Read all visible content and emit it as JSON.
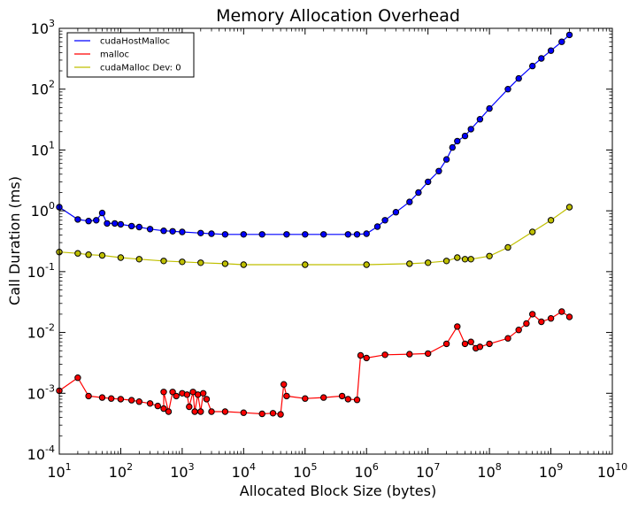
{
  "chart_data": {
    "type": "scatter",
    "title": "Memory Allocation Overhead",
    "xlabel": "Allocated Block Size (bytes)",
    "ylabel": "Call Duration (ms)",
    "xscale": "log",
    "yscale": "log",
    "xlim": [
      10,
      10000000000
    ],
    "ylim": [
      0.0001,
      1000
    ],
    "x_ticks": [
      {
        "base": "10",
        "exp": "1",
        "value": 10
      },
      {
        "base": "10",
        "exp": "2",
        "value": 100
      },
      {
        "base": "10",
        "exp": "3",
        "value": 1000
      },
      {
        "base": "10",
        "exp": "4",
        "value": 10000
      },
      {
        "base": "10",
        "exp": "5",
        "value": 100000
      },
      {
        "base": "10",
        "exp": "6",
        "value": 1000000
      },
      {
        "base": "10",
        "exp": "7",
        "value": 10000000
      },
      {
        "base": "10",
        "exp": "8",
        "value": 100000000
      },
      {
        "base": "10",
        "exp": "9",
        "value": 1000000000
      },
      {
        "base": "10",
        "exp": "10",
        "value": 10000000000
      }
    ],
    "y_ticks": [
      {
        "base": "10",
        "exp": "-4",
        "value": 0.0001
      },
      {
        "base": "10",
        "exp": "-3",
        "value": 0.001
      },
      {
        "base": "10",
        "exp": "-2",
        "value": 0.01
      },
      {
        "base": "10",
        "exp": "-1",
        "value": 0.1
      },
      {
        "base": "10",
        "exp": "0",
        "value": 1
      },
      {
        "base": "10",
        "exp": "1",
        "value": 10
      },
      {
        "base": "10",
        "exp": "2",
        "value": 100
      },
      {
        "base": "10",
        "exp": "3",
        "value": 1000
      }
    ],
    "grid": false,
    "legend_position": "top-left",
    "series": [
      {
        "name": "cudaHostMalloc",
        "color": "#0000ff",
        "marker_color": "#0000ff",
        "points": [
          [
            10,
            1.15
          ],
          [
            20,
            0.72
          ],
          [
            30,
            0.68
          ],
          [
            40,
            0.7
          ],
          [
            50,
            0.92
          ],
          [
            60,
            0.62
          ],
          [
            80,
            0.62
          ],
          [
            100,
            0.6
          ],
          [
            150,
            0.56
          ],
          [
            200,
            0.54
          ],
          [
            300,
            0.5
          ],
          [
            500,
            0.47
          ],
          [
            700,
            0.46
          ],
          [
            1000,
            0.45
          ],
          [
            2000,
            0.43
          ],
          [
            3000,
            0.42
          ],
          [
            5000,
            0.41
          ],
          [
            10000,
            0.41
          ],
          [
            20000,
            0.41
          ],
          [
            50000,
            0.41
          ],
          [
            100000,
            0.41
          ],
          [
            200000,
            0.41
          ],
          [
            500000,
            0.41
          ],
          [
            700000,
            0.41
          ],
          [
            1000000,
            0.42
          ],
          [
            1500000,
            0.55
          ],
          [
            2000000,
            0.7
          ],
          [
            3000000,
            0.95
          ],
          [
            5000000,
            1.4
          ],
          [
            7000000,
            2.0
          ],
          [
            10000000,
            3.0
          ],
          [
            15000000,
            4.5
          ],
          [
            20000000,
            7.0
          ],
          [
            25000000,
            11.0
          ],
          [
            30000000,
            14.0
          ],
          [
            40000000,
            17.0
          ],
          [
            50000000,
            22.0
          ],
          [
            70000000,
            32.0
          ],
          [
            100000000,
            48.0
          ],
          [
            200000000,
            100.0
          ],
          [
            300000000,
            150.0
          ],
          [
            500000000,
            240.0
          ],
          [
            700000000,
            320.0
          ],
          [
            1000000000,
            430.0
          ],
          [
            1500000000,
            600.0
          ],
          [
            2000000000,
            780.0
          ]
        ]
      },
      {
        "name": "malloc",
        "color": "#ff0000",
        "marker_color": "#ff0000",
        "points": [
          [
            10,
            0.0011
          ],
          [
            20,
            0.0018
          ],
          [
            30,
            0.0009
          ],
          [
            50,
            0.00085
          ],
          [
            70,
            0.00082
          ],
          [
            100,
            0.0008
          ],
          [
            150,
            0.00077
          ],
          [
            200,
            0.00073
          ],
          [
            300,
            0.00068
          ],
          [
            400,
            0.00062
          ],
          [
            500,
            0.00056
          ],
          [
            500,
            0.00105
          ],
          [
            600,
            0.0005
          ],
          [
            700,
            0.00105
          ],
          [
            800,
            0.0009
          ],
          [
            1000,
            0.001
          ],
          [
            1200,
            0.00095
          ],
          [
            1300,
            0.0006
          ],
          [
            1500,
            0.00105
          ],
          [
            1600,
            0.0005
          ],
          [
            1800,
            0.00095
          ],
          [
            2000,
            0.0005
          ],
          [
            2200,
            0.001
          ],
          [
            2500,
            0.0008
          ],
          [
            3000,
            0.0005
          ],
          [
            5000,
            0.0005
          ],
          [
            10000,
            0.00048
          ],
          [
            20000,
            0.00046
          ],
          [
            30000,
            0.00047
          ],
          [
            40000,
            0.00045
          ],
          [
            45000,
            0.0014
          ],
          [
            50000,
            0.0009
          ],
          [
            100000,
            0.00082
          ],
          [
            200000,
            0.00085
          ],
          [
            400000,
            0.0009
          ],
          [
            500000,
            0.0008
          ],
          [
            700000,
            0.00078
          ],
          [
            800000,
            0.0042
          ],
          [
            1000000,
            0.0038
          ],
          [
            2000000,
            0.0043
          ],
          [
            5000000,
            0.0044
          ],
          [
            10000000,
            0.0045
          ],
          [
            20000000,
            0.0065
          ],
          [
            30000000,
            0.0125
          ],
          [
            40000000,
            0.0065
          ],
          [
            50000000,
            0.007
          ],
          [
            60000000,
            0.0055
          ],
          [
            70000000,
            0.0058
          ],
          [
            100000000,
            0.0065
          ],
          [
            200000000,
            0.008
          ],
          [
            300000000,
            0.011
          ],
          [
            400000000,
            0.014
          ],
          [
            500000000,
            0.02
          ],
          [
            700000000,
            0.015
          ],
          [
            1000000000,
            0.017
          ],
          [
            1500000000,
            0.022
          ],
          [
            2000000000,
            0.018
          ]
        ]
      },
      {
        "name": "cudaMalloc Dev: 0",
        "color": "#bfbf00",
        "marker_color": "#bfbf00",
        "points": [
          [
            10,
            0.21
          ],
          [
            20,
            0.2
          ],
          [
            30,
            0.19
          ],
          [
            50,
            0.185
          ],
          [
            100,
            0.17
          ],
          [
            200,
            0.16
          ],
          [
            500,
            0.15
          ],
          [
            1000,
            0.145
          ],
          [
            2000,
            0.14
          ],
          [
            5000,
            0.135
          ],
          [
            10000,
            0.13
          ],
          [
            100000,
            0.13
          ],
          [
            1000000,
            0.13
          ],
          [
            5000000,
            0.135
          ],
          [
            10000000,
            0.14
          ],
          [
            20000000,
            0.15
          ],
          [
            30000000,
            0.17
          ],
          [
            40000000,
            0.16
          ],
          [
            50000000,
            0.16
          ],
          [
            100000000,
            0.18
          ],
          [
            200000000,
            0.25
          ],
          [
            500000000,
            0.45
          ],
          [
            1000000000,
            0.7
          ],
          [
            2000000000,
            1.15
          ]
        ]
      }
    ]
  }
}
